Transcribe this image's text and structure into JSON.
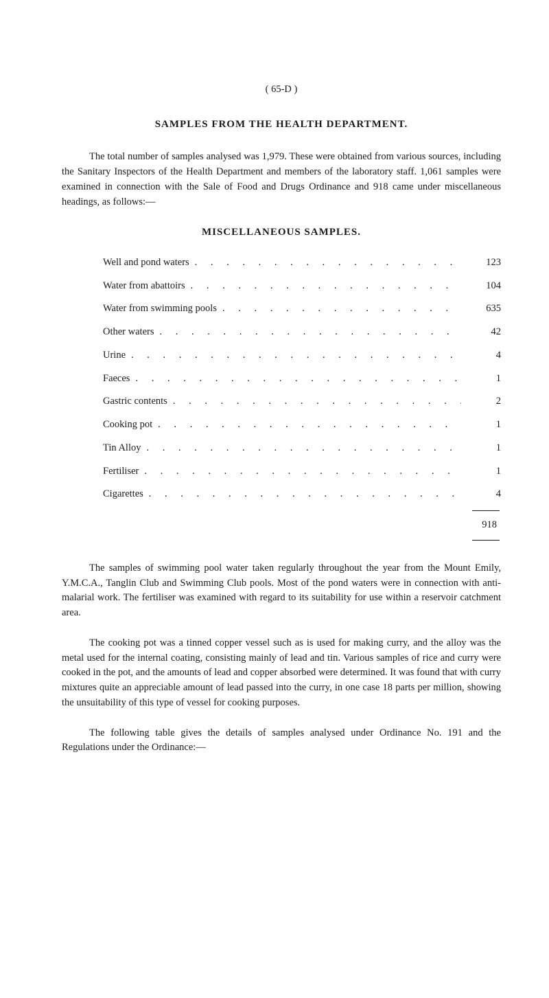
{
  "page_number": "(   65-D   )",
  "title": "SAMPLES FROM THE HEALTH DEPARTMENT.",
  "intro_para": "The total number of samples analysed was 1,979. These were obtained from various sources, including the Sanitary Inspectors of the Health Department and members of the laboratory staff. 1,061 samples were examined in connection with the Sale of Food and Drugs Ordinance and 918 came under miscellaneous headings, as follows:—",
  "subtitle": "MISCELLANEOUS SAMPLES.",
  "samples": [
    {
      "label": "Well and pond waters",
      "value": "123"
    },
    {
      "label": "Water from abattoirs",
      "value": "104"
    },
    {
      "label": "Water from swimming pools",
      "value": "635"
    },
    {
      "label": "Other waters",
      "value": "42"
    },
    {
      "label": "Urine",
      "value": "4"
    },
    {
      "label": "Faeces",
      "value": "1"
    },
    {
      "label": "Gastric contents",
      "value": "2"
    },
    {
      "label": "Cooking pot",
      "value": "1"
    },
    {
      "label": "Tin Alloy",
      "value": "1"
    },
    {
      "label": "Fertiliser",
      "value": "1"
    },
    {
      "label": "Cigarettes",
      "value": "4"
    }
  ],
  "total": "918",
  "para_swimming": "The samples of swimming pool water taken regularly throughout the year from the Mount Emily, Y.M.C.A., Tanglin Club and Swimming Club pools. Most of the pond waters were in connection with anti-malarial work. The fertiliser was examined with regard to its suitability for use within a reservoir catchment area.",
  "para_cooking": "The cooking pot was a tinned copper vessel such as is used for making curry, and the alloy was the metal used for the internal coating, consisting mainly of lead and tin. Various samples of rice and curry were cooked in the pot, and the amounts of lead and copper absorbed were determined. It was found that with curry mixtures quite an appreciable amount of lead passed into the curry, in one case 18 parts per million, showing the unsuitability of this type of vessel for cooking purposes.",
  "para_following": "The following table gives the details of samples analysed under Ordinance No. 191 and the Regulations under the Ordinance:—",
  "dot_fill": ". . . . . . . . . . . . . . . . . . . . . . . ."
}
